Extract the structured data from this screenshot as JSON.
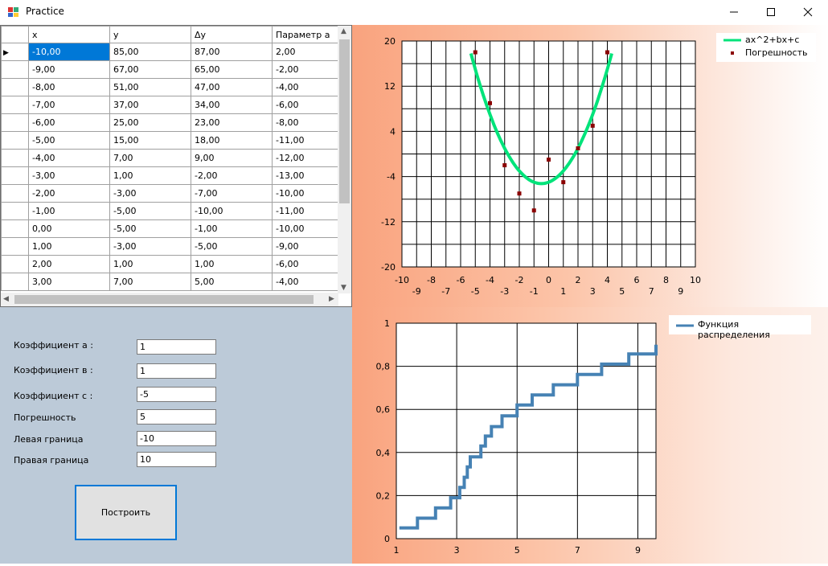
{
  "window": {
    "title": "Practice",
    "minimize": "—",
    "maximize": "☐",
    "close": "✕"
  },
  "grid": {
    "columns": [
      "x",
      "y",
      "Δy",
      "Параметр a"
    ],
    "rows": [
      [
        "-10,00",
        "85,00",
        "87,00",
        "2,00"
      ],
      [
        "-9,00",
        "67,00",
        "65,00",
        "-2,00"
      ],
      [
        "-8,00",
        "51,00",
        "47,00",
        "-4,00"
      ],
      [
        "-7,00",
        "37,00",
        "34,00",
        "-6,00"
      ],
      [
        "-6,00",
        "25,00",
        "23,00",
        "-8,00"
      ],
      [
        "-5,00",
        "15,00",
        "18,00",
        "-11,00"
      ],
      [
        "-4,00",
        "7,00",
        "9,00",
        "-12,00"
      ],
      [
        "-3,00",
        "1,00",
        "-2,00",
        "-13,00"
      ],
      [
        "-2,00",
        "-3,00",
        "-7,00",
        "-10,00"
      ],
      [
        "-1,00",
        "-5,00",
        "-10,00",
        "-11,00"
      ],
      [
        "0,00",
        "-5,00",
        "-1,00",
        "-10,00"
      ],
      [
        "1,00",
        "-3,00",
        "-5,00",
        "-9,00"
      ],
      [
        "2,00",
        "1,00",
        "1,00",
        "-6,00"
      ],
      [
        "3,00",
        "7,00",
        "5,00",
        "-4,00"
      ]
    ]
  },
  "form": {
    "fields": [
      {
        "label": "Коэффициент а :",
        "value": "1"
      },
      {
        "label": "Коэффициент в :",
        "value": "1"
      },
      {
        "label": "Коэффициент с :",
        "value": "-5"
      },
      {
        "label": "Погрешность",
        "value": "5"
      },
      {
        "label": "Левая граница",
        "value": "-10"
      },
      {
        "label": "Правая граница",
        "value": "10"
      }
    ],
    "build_button": "Построить"
  },
  "chart_data": [
    {
      "type": "line",
      "legend_position": "top-right",
      "xlim": [
        -10,
        10
      ],
      "ylim": [
        -20,
        20
      ],
      "grid": true,
      "x_ticks_upper": [
        "-10",
        "-8",
        "-6",
        "-4",
        "-2",
        "0",
        "2",
        "4",
        "6",
        "8",
        "10"
      ],
      "x_ticks_lower": [
        "-9",
        "-7",
        "-5",
        "-3",
        "-1",
        "1",
        "3",
        "5",
        "7",
        "9"
      ],
      "y_ticks": [
        "20",
        "12",
        "4",
        "-4",
        "-12",
        "-20"
      ],
      "series": [
        {
          "name": "ax^2+bx+c",
          "kind": "line",
          "color": "#00e37a",
          "coefficients": {
            "a": 1,
            "b": 1,
            "c": -5
          },
          "x_range": [
            -5.3,
            4.3
          ]
        },
        {
          "name": "Погрешность",
          "kind": "points",
          "color": "#8b0000",
          "x": [
            -5,
            -4,
            -3,
            -2,
            -1,
            0,
            1,
            2,
            3,
            4
          ],
          "y": [
            18,
            9,
            -2,
            -7,
            -10,
            -1,
            -5,
            1,
            5,
            18
          ]
        }
      ]
    },
    {
      "type": "line",
      "legend_position": "top-right",
      "xlim": [
        1,
        9.6
      ],
      "ylim": [
        0,
        1
      ],
      "grid": true,
      "x_ticks": [
        "1",
        "3",
        "5",
        "7",
        "9"
      ],
      "y_ticks": [
        "1",
        "0,8",
        "0,6",
        "0,4",
        "0,2",
        "0"
      ],
      "series": [
        {
          "name": "Функция распределения",
          "kind": "step",
          "color": "#4682b4",
          "x": [
            1.1,
            1.7,
            2.3,
            2.8,
            3.1,
            3.25,
            3.35,
            3.45,
            3.8,
            3.95,
            4.15,
            4.5,
            5.0,
            5.5,
            6.2,
            7.0,
            7.8,
            8.7,
            9.6
          ],
          "y": [
            0.05,
            0.095,
            0.143,
            0.19,
            0.238,
            0.285,
            0.333,
            0.38,
            0.43,
            0.476,
            0.52,
            0.57,
            0.62,
            0.667,
            0.714,
            0.762,
            0.81,
            0.857,
            0.9
          ]
        }
      ]
    }
  ]
}
